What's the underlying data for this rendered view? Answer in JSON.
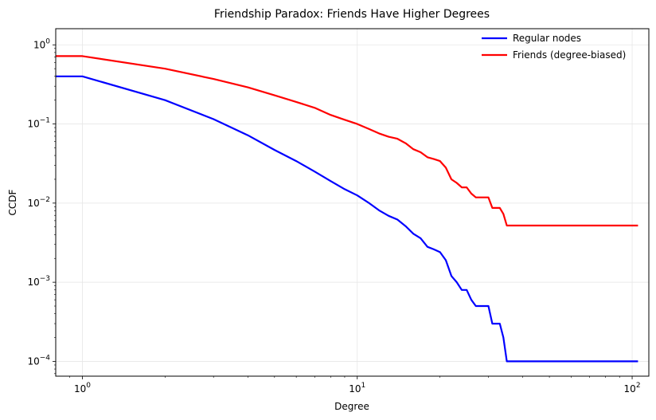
{
  "chart_data": {
    "type": "line",
    "title": "Friendship Paradox: Friends Have Higher Degrees",
    "xlabel": "Degree",
    "ylabel": "CCDF",
    "xscale": "log",
    "yscale": "log",
    "xlim": [
      0.8,
      115
    ],
    "ylim": [
      6.5e-05,
      1.6
    ],
    "x_ticks": [
      {
        "value": 1,
        "base": "10",
        "exp": "0"
      },
      {
        "value": 10,
        "base": "10",
        "exp": "1"
      },
      {
        "value": 100,
        "base": "10",
        "exp": "2"
      }
    ],
    "y_ticks": [
      {
        "value": 0.0001,
        "base": "10",
        "exp": "−4"
      },
      {
        "value": 0.001,
        "base": "10",
        "exp": "−3"
      },
      {
        "value": 0.01,
        "base": "10",
        "exp": "−2"
      },
      {
        "value": 0.1,
        "base": "10",
        "exp": "−1"
      },
      {
        "value": 1,
        "base": "10",
        "exp": "0"
      }
    ],
    "grid": true,
    "legend_position": "top-right",
    "series": [
      {
        "name": "Regular nodes",
        "color": "#0000ff",
        "x": [
          0.8,
          1,
          2,
          3,
          4,
          5,
          6,
          7,
          8,
          9,
          10,
          11,
          12,
          13,
          14,
          15,
          16,
          17,
          18,
          19,
          20,
          21,
          22,
          23,
          24,
          25,
          26,
          27,
          28,
          29,
          30,
          31,
          32,
          33,
          34,
          35,
          105
        ],
        "values": [
          0.4,
          0.4,
          0.2,
          0.115,
          0.072,
          0.047,
          0.034,
          0.025,
          0.019,
          0.015,
          0.0125,
          0.0101,
          0.0081,
          0.0069,
          0.0062,
          0.0051,
          0.0041,
          0.0036,
          0.0028,
          0.0026,
          0.0024,
          0.0019,
          0.0012,
          0.001,
          0.0008,
          0.0008,
          0.0006,
          0.0005,
          0.0005,
          0.0005,
          0.0005,
          0.0003,
          0.0003,
          0.0003,
          0.0002,
          0.0001,
          0.0001
        ]
      },
      {
        "name": "Friends (degree-biased)",
        "color": "#ff0000",
        "x": [
          0.8,
          1,
          2,
          3,
          4,
          5,
          6,
          7,
          8,
          9,
          10,
          11,
          12,
          13,
          14,
          15,
          16,
          17,
          18,
          19,
          20,
          21,
          22,
          23,
          24,
          25,
          26,
          27,
          28,
          29,
          30,
          31,
          32,
          33,
          34,
          35,
          105
        ],
        "values": [
          0.72,
          0.72,
          0.5,
          0.37,
          0.29,
          0.23,
          0.19,
          0.16,
          0.13,
          0.113,
          0.1,
          0.087,
          0.076,
          0.069,
          0.065,
          0.057,
          0.048,
          0.044,
          0.038,
          0.036,
          0.034,
          0.028,
          0.02,
          0.018,
          0.0158,
          0.0158,
          0.0132,
          0.0118,
          0.0118,
          0.0118,
          0.0118,
          0.0087,
          0.0087,
          0.0087,
          0.0073,
          0.0052,
          0.0052
        ]
      }
    ]
  }
}
